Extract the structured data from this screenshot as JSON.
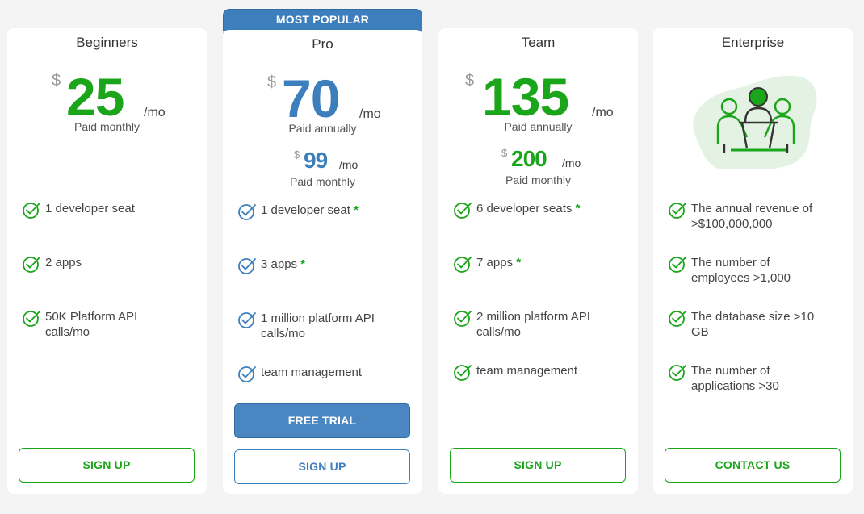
{
  "badge": "MOST POPULAR",
  "currency": "$",
  "per": "/mo",
  "plans": [
    {
      "title": "Beginners",
      "price": "25",
      "price_note": "Paid monthly",
      "features": [
        "1 developer seat",
        "2 apps",
        "50K Platform API calls/mo"
      ],
      "button": "SIGN UP"
    },
    {
      "title": "Pro",
      "price": "70",
      "price_note": "Paid annually",
      "alt_price": "99",
      "alt_note": "Paid monthly",
      "features": [
        "1 developer seat",
        "3 apps",
        "1 million platform API calls/mo",
        "team management"
      ],
      "trial_button": "FREE TRIAL",
      "button": "SIGN UP"
    },
    {
      "title": "Team",
      "price": "135",
      "price_note": "Paid annually",
      "alt_price": "200",
      "alt_note": "Paid monthly",
      "features": [
        "6 developer seats",
        "7 apps",
        "2 million platform API calls/mo",
        "team management"
      ],
      "button": "SIGN UP"
    },
    {
      "title": "Enterprise",
      "features": [
        "The annual revenue of >$100,000,000",
        "The number of employees >1,000",
        "The database size >10 GB",
        "The number of applications >30"
      ],
      "button": "CONTACT US"
    }
  ],
  "star": "*",
  "colors": {
    "green": "#1aa51a",
    "blue": "#3d7fbd",
    "background": "#f4f4f5"
  }
}
